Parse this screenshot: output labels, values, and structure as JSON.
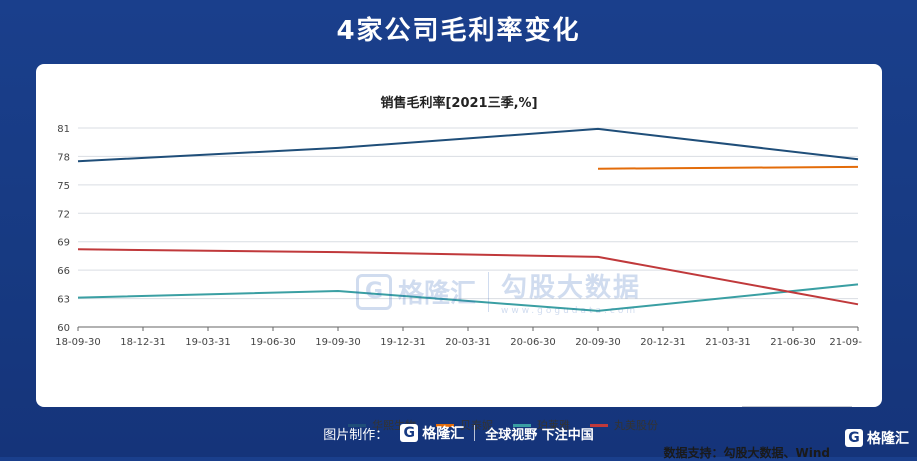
{
  "page_title": "4家公司毛利率变化",
  "watermark": {
    "logo_letter": "G",
    "brand": "格隆汇",
    "partner": "勾股大数据",
    "url": "www.gogudata.com"
  },
  "data_source": "数据支持：勾股大数据、Wind",
  "footer": {
    "made_by": "图片制作：",
    "logo_letter": "G",
    "brand": "格隆汇",
    "slogan": "全球视野 下注中国"
  },
  "corner": {
    "logo_letter": "G",
    "brand": "格隆汇"
  },
  "colors": {
    "华熙生物": "#1f4e79",
    "贝泰妮": "#e36c0a",
    "珀莱雅": "#3a9fa3",
    "丸美股份": "#c0393b",
    "grid": "#d9dde3",
    "axis": "#666666"
  },
  "chart_data": {
    "type": "line",
    "title": "销售毛利率[2021三季,%]",
    "xlabel": "",
    "ylabel": "",
    "categories": [
      "18-09-30",
      "18-12-31",
      "19-03-31",
      "19-06-30",
      "19-09-30",
      "19-12-31",
      "20-03-31",
      "20-06-30",
      "20-09-30",
      "20-12-31",
      "21-03-31",
      "21-06-30",
      "21-09-"
    ],
    "ylim": [
      60,
      81
    ],
    "yticks": [
      60,
      63,
      66,
      69,
      72,
      75,
      78,
      81
    ],
    "grid": true,
    "legend_position": "bottom",
    "series": [
      {
        "name": "华熙生物",
        "values": [
          77.5,
          null,
          null,
          null,
          78.9,
          null,
          null,
          null,
          80.9,
          null,
          null,
          null,
          77.7
        ]
      },
      {
        "name": "贝泰妮",
        "values": [
          null,
          null,
          null,
          null,
          null,
          null,
          null,
          null,
          76.7,
          null,
          null,
          null,
          76.9
        ]
      },
      {
        "name": "珀莱雅",
        "values": [
          63.1,
          null,
          null,
          null,
          63.8,
          null,
          null,
          null,
          61.7,
          null,
          null,
          null,
          64.5
        ]
      },
      {
        "name": "丸美股份",
        "values": [
          68.2,
          null,
          null,
          null,
          67.9,
          null,
          null,
          null,
          67.4,
          null,
          null,
          null,
          62.4
        ]
      }
    ]
  }
}
